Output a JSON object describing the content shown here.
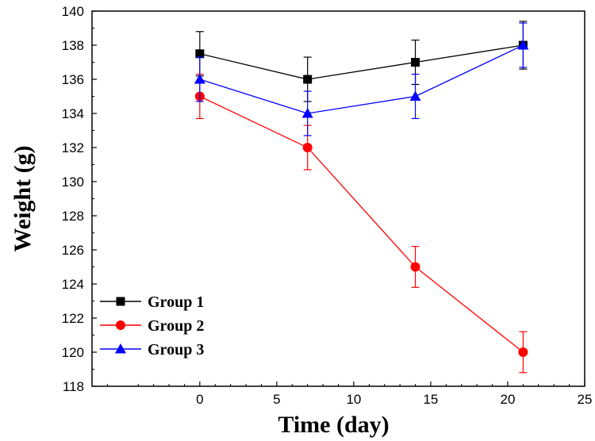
{
  "chart_data": {
    "type": "line",
    "title": "",
    "xlabel": "Time (day)",
    "ylabel": "Weight (g)",
    "xlim": [
      -7,
      25
    ],
    "ylim": [
      118,
      140
    ],
    "xticks": [
      0,
      5,
      10,
      15,
      20,
      25
    ],
    "yticks": [
      118,
      120,
      122,
      124,
      126,
      128,
      130,
      132,
      134,
      136,
      138,
      140
    ],
    "grid": false,
    "legend_position": "bottom-left",
    "series": [
      {
        "name": "Group 1",
        "color": "#000000",
        "marker": "square",
        "x": [
          0,
          7,
          14,
          21
        ],
        "y": [
          137.5,
          136.0,
          137.0,
          138.0
        ],
        "error": [
          1.3,
          1.3,
          1.3,
          1.4
        ]
      },
      {
        "name": "Group 2",
        "color": "#ff0000",
        "marker": "circle",
        "x": [
          0,
          7,
          14,
          21
        ],
        "y": [
          135.0,
          132.0,
          125.0,
          120.0
        ],
        "error": [
          1.3,
          1.3,
          1.2,
          1.2
        ]
      },
      {
        "name": "Group 3",
        "color": "#0000ff",
        "marker": "triangle",
        "x": [
          0,
          7,
          14,
          21
        ],
        "y": [
          136.0,
          134.0,
          135.0,
          138.0
        ],
        "error": [
          1.3,
          1.3,
          1.3,
          1.3
        ]
      }
    ]
  }
}
